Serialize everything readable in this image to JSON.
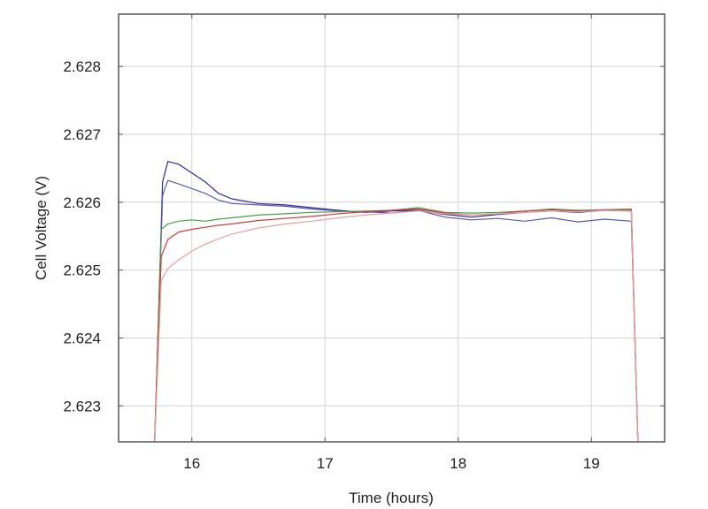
{
  "chart_data": {
    "type": "line",
    "title": "",
    "xlabel": "Time (hours)",
    "ylabel": "Cell Voltage (V)",
    "xlim": [
      15.45,
      19.55
    ],
    "ylim": [
      2.62247,
      2.62877
    ],
    "xticks": [
      16,
      17,
      18,
      19
    ],
    "xtick_labels": [
      "16",
      "17",
      "18",
      "19"
    ],
    "yticks": [
      2.623,
      2.624,
      2.625,
      2.626,
      2.627,
      2.628
    ],
    "ytick_labels": [
      "2.623",
      "2.624",
      "2.625",
      "2.626",
      "2.627",
      "2.628"
    ],
    "grid": true,
    "legend": "none",
    "series": [
      {
        "color": "#2c2a9e",
        "x": [
          15.72,
          15.78,
          15.82,
          15.9,
          16.0,
          16.1,
          16.2,
          16.3,
          16.5,
          16.7,
          16.9,
          17.1,
          17.3,
          17.5,
          17.7,
          17.9,
          18.1,
          18.3,
          18.5,
          18.7,
          18.9,
          19.1,
          19.3,
          19.35
        ],
        "y": [
          2.6224,
          2.6263,
          2.6266,
          2.62656,
          2.62643,
          2.6263,
          2.62613,
          2.62605,
          2.62598,
          2.62596,
          2.62592,
          2.62588,
          2.62585,
          2.62587,
          2.62588,
          2.62582,
          2.62578,
          2.62582,
          2.62585,
          2.62587,
          2.62585,
          2.62588,
          2.62587,
          2.6224
        ]
      },
      {
        "color": "#5a5ab4",
        "x": [
          15.72,
          15.78,
          15.82,
          15.9,
          16.0,
          16.1,
          16.2,
          16.3,
          16.5,
          16.7,
          16.9,
          17.1,
          17.3,
          17.5,
          17.7,
          17.9,
          18.1,
          18.3,
          18.5,
          18.7,
          18.9,
          19.1,
          19.3,
          19.35
        ],
        "y": [
          2.6224,
          2.6261,
          2.62632,
          2.62627,
          2.6262,
          2.62613,
          2.62603,
          2.62598,
          2.62596,
          2.62594,
          2.6259,
          2.62587,
          2.62586,
          2.62584,
          2.62588,
          2.62578,
          2.62574,
          2.62576,
          2.62572,
          2.62577,
          2.62571,
          2.62575,
          2.62572,
          2.6224
        ]
      },
      {
        "color": "#4aa04a",
        "x": [
          15.72,
          15.77,
          15.82,
          15.9,
          16.0,
          16.1,
          16.2,
          16.3,
          16.5,
          16.7,
          16.9,
          17.1,
          17.3,
          17.5,
          17.7,
          17.9,
          18.1,
          18.3,
          18.5,
          18.7,
          18.9,
          19.1,
          19.3,
          19.35
        ],
        "y": [
          2.6224,
          2.6256,
          2.62568,
          2.62572,
          2.62574,
          2.62572,
          2.62575,
          2.62577,
          2.62581,
          2.62583,
          2.62585,
          2.62586,
          2.62587,
          2.62588,
          2.62592,
          2.62585,
          2.62584,
          2.62585,
          2.62587,
          2.6259,
          2.62588,
          2.62589,
          2.6259,
          2.6224
        ]
      },
      {
        "color": "#d23a3a",
        "x": [
          15.72,
          15.77,
          15.82,
          15.9,
          16.0,
          16.1,
          16.2,
          16.3,
          16.5,
          16.7,
          16.9,
          17.1,
          17.3,
          17.5,
          17.7,
          17.9,
          18.1,
          18.3,
          18.5,
          18.7,
          18.9,
          19.1,
          19.3,
          19.35
        ],
        "y": [
          2.6224,
          2.6252,
          2.62545,
          2.62556,
          2.6256,
          2.62563,
          2.62566,
          2.62568,
          2.62573,
          2.62576,
          2.62579,
          2.62583,
          2.62586,
          2.62588,
          2.6259,
          2.62584,
          2.62581,
          2.62583,
          2.62587,
          2.62589,
          2.62587,
          2.62589,
          2.62588,
          2.6224
        ]
      },
      {
        "color": "#e8a0a0",
        "x": [
          15.72,
          15.77,
          15.82,
          15.9,
          16.0,
          16.1,
          16.2,
          16.3,
          16.5,
          16.7,
          16.9,
          17.1,
          17.3,
          17.5,
          17.7,
          17.9,
          18.1,
          18.3,
          18.5,
          18.7,
          18.9,
          19.1,
          19.3,
          19.35
        ],
        "y": [
          2.6224,
          2.62485,
          2.62502,
          2.62515,
          2.62528,
          2.62538,
          2.62546,
          2.62553,
          2.62562,
          2.62568,
          2.62572,
          2.62577,
          2.62581,
          2.62584,
          2.62587,
          2.62583,
          2.62581,
          2.62583,
          2.62585,
          2.62587,
          2.62586,
          2.62588,
          2.62587,
          2.6224
        ]
      }
    ]
  }
}
